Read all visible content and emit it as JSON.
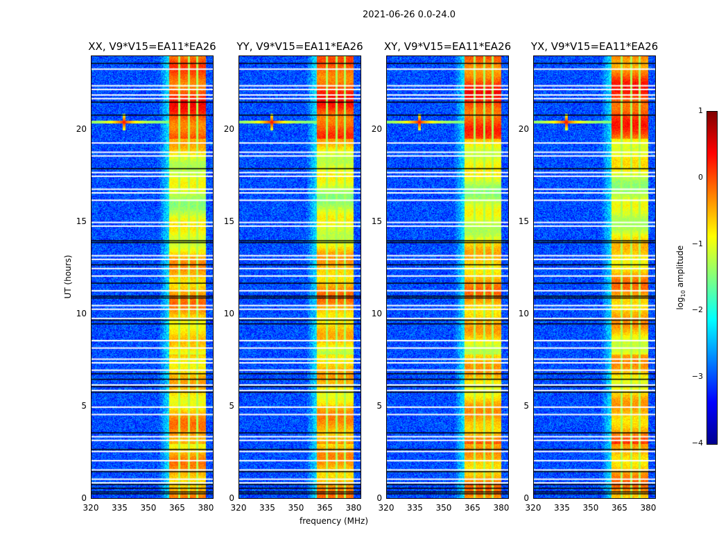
{
  "chart_data": {
    "type": "heatmap",
    "title": "2021-06-26 0.0-24.0",
    "xlabel": "frequency (MHz)",
    "ylabel": "UT (hours)",
    "xlim": [
      320,
      384
    ],
    "ylim": [
      0,
      24
    ],
    "xticks": [
      "320",
      "335",
      "350",
      "365",
      "380"
    ],
    "xtick_values": [
      320,
      335,
      350,
      365,
      380
    ],
    "yticks": [
      "0",
      "5",
      "10",
      "15",
      "20"
    ],
    "ytick_values": [
      0,
      5,
      10,
      15,
      20
    ],
    "panels": [
      {
        "title": "XX, V9*V15=EA11*EA26"
      },
      {
        "title": "YY, V9*V15=EA11*EA26"
      },
      {
        "title": "XY, V9*V15=EA11*EA26"
      },
      {
        "title": "YX, V9*V15=EA11*EA26"
      }
    ],
    "background_log_amplitude": -3,
    "rfi_band_mhz": [
      360.5,
      380
    ],
    "rfi_subband_gaps_mhz": [
      366,
      371,
      375.5
    ],
    "rfi_band_log_amplitude": [
      -1,
      0.5
    ],
    "rfi_line": {
      "time_hours": 20.4,
      "source_mhz": 337,
      "peak_log_amplitude": 0.3
    },
    "flagged_white_hours": [
      23.3,
      22.4,
      22.2,
      21.9,
      21.7,
      19.3,
      18.8,
      18.6,
      17.7,
      17.5,
      16.8,
      16.6,
      16.2,
      15.0,
      14.8,
      13.2,
      13.0,
      12.5,
      12.1,
      11.3,
      10.5,
      10.3,
      9.8,
      8.6,
      8.2,
      7.6,
      7.4,
      7.0,
      6.2,
      5.9,
      5.0,
      4.6,
      3.4,
      3.2,
      2.6,
      2.1,
      1.6,
      1.1,
      0.9
    ],
    "flagged_black_hours": [
      23.6,
      21.5,
      20.8,
      17.9,
      14.0,
      13.9,
      12.7,
      11.7,
      11.0,
      10.9,
      9.7,
      9.5,
      6.8,
      6.5,
      6.1,
      5.8,
      3.6,
      2.7,
      1.5,
      0.8,
      0.6,
      0.4,
      0.3
    ],
    "colorbar": {
      "label_prefix": "log",
      "label_sub": "10",
      "label_suffix": " amplitude",
      "ticks": [
        "1",
        "0",
        "−1",
        "−2",
        "−3",
        "−4"
      ],
      "tick_values": [
        1,
        0,
        -1,
        -2,
        -3,
        -4
      ],
      "range": [
        -4,
        1
      ],
      "colormap": "jet"
    }
  }
}
